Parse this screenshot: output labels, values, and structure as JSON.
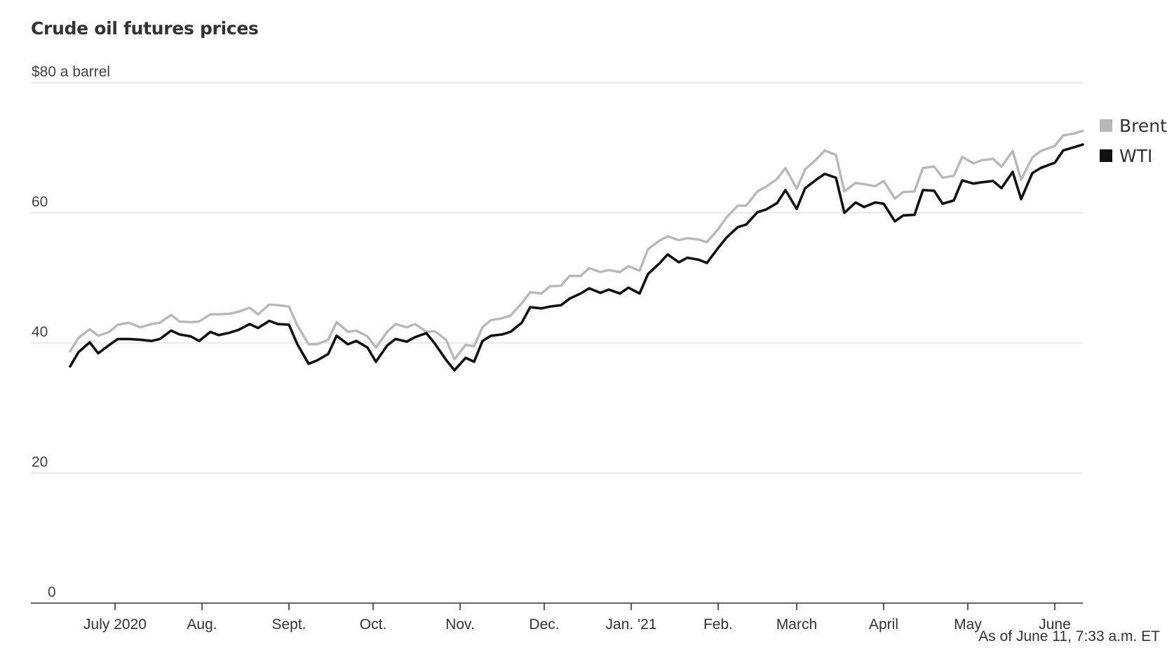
{
  "chart_data": {
    "type": "line",
    "title": "Crude oil futures prices",
    "y_unit_label": "$80 a barrel",
    "ylim": [
      0,
      80
    ],
    "y_ticks": [
      0,
      20,
      40,
      60,
      80
    ],
    "y_tick_labels": [
      "0",
      "20",
      "40",
      "60",
      "$80 a barrel"
    ],
    "xlim": [
      "2020-06-01",
      "2021-06-11"
    ],
    "x_ticks": [
      {
        "date": "2020-07-01",
        "label": "July 2020"
      },
      {
        "date": "2020-08-01",
        "label": "Aug."
      },
      {
        "date": "2020-09-01",
        "label": "Sept."
      },
      {
        "date": "2020-10-01",
        "label": "Oct."
      },
      {
        "date": "2020-11-01",
        "label": "Nov."
      },
      {
        "date": "2020-12-01",
        "label": "Dec."
      },
      {
        "date": "2021-01-01",
        "label": "Jan. '21"
      },
      {
        "date": "2021-02-01",
        "label": "Feb."
      },
      {
        "date": "2021-03-01",
        "label": "March"
      },
      {
        "date": "2021-04-01",
        "label": "April"
      },
      {
        "date": "2021-05-01",
        "label": "May"
      },
      {
        "date": "2021-06-01",
        "label": "June"
      }
    ],
    "grid": true,
    "legend_position": "right",
    "series": [
      {
        "name": "Brent",
        "color": "#b8b8b8",
        "points": [
          [
            "2020-06-15",
            38.7
          ],
          [
            "2020-06-18",
            40.8
          ],
          [
            "2020-06-22",
            42.1
          ],
          [
            "2020-06-25",
            41.1
          ],
          [
            "2020-06-29",
            41.7
          ],
          [
            "2020-07-02",
            42.8
          ],
          [
            "2020-07-06",
            43.1
          ],
          [
            "2020-07-10",
            42.4
          ],
          [
            "2020-07-14",
            42.9
          ],
          [
            "2020-07-17",
            43.1
          ],
          [
            "2020-07-21",
            44.3
          ],
          [
            "2020-07-24",
            43.3
          ],
          [
            "2020-07-28",
            43.2
          ],
          [
            "2020-07-31",
            43.3
          ],
          [
            "2020-08-04",
            44.4
          ],
          [
            "2020-08-07",
            44.4
          ],
          [
            "2020-08-11",
            44.5
          ],
          [
            "2020-08-14",
            44.8
          ],
          [
            "2020-08-18",
            45.4
          ],
          [
            "2020-08-21",
            44.4
          ],
          [
            "2020-08-25",
            45.9
          ],
          [
            "2020-08-28",
            45.8
          ],
          [
            "2020-09-01",
            45.6
          ],
          [
            "2020-09-04",
            42.7
          ],
          [
            "2020-09-08",
            39.8
          ],
          [
            "2020-09-11",
            39.8
          ],
          [
            "2020-09-15",
            40.5
          ],
          [
            "2020-09-18",
            43.2
          ],
          [
            "2020-09-22",
            41.7
          ],
          [
            "2020-09-25",
            41.9
          ],
          [
            "2020-09-29",
            41.0
          ],
          [
            "2020-10-02",
            39.3
          ],
          [
            "2020-10-06",
            41.7
          ],
          [
            "2020-10-09",
            42.9
          ],
          [
            "2020-10-13",
            42.4
          ],
          [
            "2020-10-16",
            42.9
          ],
          [
            "2020-10-20",
            41.7
          ],
          [
            "2020-10-23",
            41.8
          ],
          [
            "2020-10-27",
            40.5
          ],
          [
            "2020-10-30",
            37.5
          ],
          [
            "2020-11-03",
            39.7
          ],
          [
            "2020-11-06",
            39.5
          ],
          [
            "2020-11-09",
            42.4
          ],
          [
            "2020-11-12",
            43.5
          ],
          [
            "2020-11-16",
            43.8
          ],
          [
            "2020-11-19",
            44.2
          ],
          [
            "2020-11-23",
            46.1
          ],
          [
            "2020-11-26",
            47.8
          ],
          [
            "2020-11-30",
            47.6
          ],
          [
            "2020-12-03",
            48.7
          ],
          [
            "2020-12-07",
            48.8
          ],
          [
            "2020-12-10",
            50.3
          ],
          [
            "2020-12-14",
            50.3
          ],
          [
            "2020-12-17",
            51.5
          ],
          [
            "2020-12-21",
            50.9
          ],
          [
            "2020-12-24",
            51.2
          ],
          [
            "2020-12-28",
            50.9
          ],
          [
            "2020-12-31",
            51.8
          ],
          [
            "2021-01-04",
            51.1
          ],
          [
            "2021-01-07",
            54.4
          ],
          [
            "2021-01-11",
            55.7
          ],
          [
            "2021-01-14",
            56.4
          ],
          [
            "2021-01-18",
            55.8
          ],
          [
            "2021-01-21",
            56.1
          ],
          [
            "2021-01-25",
            55.9
          ],
          [
            "2021-01-28",
            55.5
          ],
          [
            "2021-02-01",
            57.5
          ],
          [
            "2021-02-04",
            59.3
          ],
          [
            "2021-02-08",
            61.1
          ],
          [
            "2021-02-11",
            61.1
          ],
          [
            "2021-02-15",
            63.3
          ],
          [
            "2021-02-18",
            64.0
          ],
          [
            "2021-02-22",
            65.2
          ],
          [
            "2021-02-25",
            66.9
          ],
          [
            "2021-03-01",
            63.7
          ],
          [
            "2021-03-04",
            66.7
          ],
          [
            "2021-03-08",
            68.2
          ],
          [
            "2021-03-11",
            69.6
          ],
          [
            "2021-03-15",
            68.9
          ],
          [
            "2021-03-18",
            63.3
          ],
          [
            "2021-03-22",
            64.6
          ],
          [
            "2021-03-25",
            64.4
          ],
          [
            "2021-03-29",
            64.1
          ],
          [
            "2021-04-01",
            64.9
          ],
          [
            "2021-04-05",
            62.2
          ],
          [
            "2021-04-08",
            63.2
          ],
          [
            "2021-04-12",
            63.3
          ],
          [
            "2021-04-15",
            66.9
          ],
          [
            "2021-04-19",
            67.1
          ],
          [
            "2021-04-22",
            65.4
          ],
          [
            "2021-04-26",
            65.7
          ],
          [
            "2021-04-29",
            68.6
          ],
          [
            "2021-05-03",
            67.6
          ],
          [
            "2021-05-06",
            68.1
          ],
          [
            "2021-05-10",
            68.3
          ],
          [
            "2021-05-13",
            67.1
          ],
          [
            "2021-05-17",
            69.5
          ],
          [
            "2021-05-20",
            65.1
          ],
          [
            "2021-05-24",
            68.5
          ],
          [
            "2021-05-27",
            69.5
          ],
          [
            "2021-06-01",
            70.3
          ],
          [
            "2021-06-04",
            71.9
          ],
          [
            "2021-06-08",
            72.2
          ],
          [
            "2021-06-11",
            72.6
          ]
        ]
      },
      {
        "name": "WTI",
        "color": "#111111",
        "points": [
          [
            "2020-06-15",
            36.4
          ],
          [
            "2020-06-18",
            38.6
          ],
          [
            "2020-06-22",
            40.1
          ],
          [
            "2020-06-25",
            38.4
          ],
          [
            "2020-06-29",
            39.7
          ],
          [
            "2020-07-02",
            40.6
          ],
          [
            "2020-07-06",
            40.6
          ],
          [
            "2020-07-10",
            40.5
          ],
          [
            "2020-07-14",
            40.3
          ],
          [
            "2020-07-17",
            40.6
          ],
          [
            "2020-07-21",
            41.9
          ],
          [
            "2020-07-24",
            41.3
          ],
          [
            "2020-07-28",
            41.0
          ],
          [
            "2020-07-31",
            40.3
          ],
          [
            "2020-08-04",
            41.7
          ],
          [
            "2020-08-07",
            41.2
          ],
          [
            "2020-08-11",
            41.6
          ],
          [
            "2020-08-14",
            42.0
          ],
          [
            "2020-08-18",
            42.9
          ],
          [
            "2020-08-21",
            42.3
          ],
          [
            "2020-08-25",
            43.4
          ],
          [
            "2020-08-28",
            42.9
          ],
          [
            "2020-09-01",
            42.8
          ],
          [
            "2020-09-04",
            39.8
          ],
          [
            "2020-09-08",
            36.8
          ],
          [
            "2020-09-11",
            37.3
          ],
          [
            "2020-09-15",
            38.3
          ],
          [
            "2020-09-18",
            41.1
          ],
          [
            "2020-09-22",
            39.8
          ],
          [
            "2020-09-25",
            40.3
          ],
          [
            "2020-09-29",
            39.3
          ],
          [
            "2020-10-02",
            37.1
          ],
          [
            "2020-10-06",
            39.6
          ],
          [
            "2020-10-09",
            40.6
          ],
          [
            "2020-10-13",
            40.2
          ],
          [
            "2020-10-16",
            40.9
          ],
          [
            "2020-10-20",
            41.5
          ],
          [
            "2020-10-23",
            39.9
          ],
          [
            "2020-10-27",
            37.4
          ],
          [
            "2020-10-30",
            35.8
          ],
          [
            "2020-11-03",
            37.7
          ],
          [
            "2020-11-06",
            37.1
          ],
          [
            "2020-11-09",
            40.3
          ],
          [
            "2020-11-12",
            41.1
          ],
          [
            "2020-11-16",
            41.3
          ],
          [
            "2020-11-19",
            41.7
          ],
          [
            "2020-11-23",
            43.1
          ],
          [
            "2020-11-26",
            45.5
          ],
          [
            "2020-11-30",
            45.3
          ],
          [
            "2020-12-03",
            45.6
          ],
          [
            "2020-12-07",
            45.8
          ],
          [
            "2020-12-10",
            46.8
          ],
          [
            "2020-12-14",
            47.6
          ],
          [
            "2020-12-17",
            48.4
          ],
          [
            "2020-12-21",
            47.7
          ],
          [
            "2020-12-24",
            48.2
          ],
          [
            "2020-12-28",
            47.6
          ],
          [
            "2020-12-31",
            48.5
          ],
          [
            "2021-01-04",
            47.6
          ],
          [
            "2021-01-07",
            50.6
          ],
          [
            "2021-01-11",
            52.2
          ],
          [
            "2021-01-14",
            53.6
          ],
          [
            "2021-01-18",
            52.4
          ],
          [
            "2021-01-21",
            53.1
          ],
          [
            "2021-01-25",
            52.8
          ],
          [
            "2021-01-28",
            52.3
          ],
          [
            "2021-02-01",
            54.6
          ],
          [
            "2021-02-04",
            56.2
          ],
          [
            "2021-02-08",
            57.8
          ],
          [
            "2021-02-11",
            58.2
          ],
          [
            "2021-02-15",
            60.1
          ],
          [
            "2021-02-18",
            60.5
          ],
          [
            "2021-02-22",
            61.5
          ],
          [
            "2021-02-25",
            63.5
          ],
          [
            "2021-03-01",
            60.6
          ],
          [
            "2021-03-04",
            63.8
          ],
          [
            "2021-03-08",
            65.1
          ],
          [
            "2021-03-11",
            66.0
          ],
          [
            "2021-03-15",
            65.4
          ],
          [
            "2021-03-18",
            60.0
          ],
          [
            "2021-03-22",
            61.6
          ],
          [
            "2021-03-25",
            60.9
          ],
          [
            "2021-03-29",
            61.6
          ],
          [
            "2021-04-01",
            61.4
          ],
          [
            "2021-04-05",
            58.7
          ],
          [
            "2021-04-08",
            59.6
          ],
          [
            "2021-04-12",
            59.7
          ],
          [
            "2021-04-15",
            63.5
          ],
          [
            "2021-04-19",
            63.4
          ],
          [
            "2021-04-22",
            61.4
          ],
          [
            "2021-04-26",
            61.9
          ],
          [
            "2021-04-29",
            65.0
          ],
          [
            "2021-05-03",
            64.5
          ],
          [
            "2021-05-06",
            64.7
          ],
          [
            "2021-05-10",
            64.9
          ],
          [
            "2021-05-13",
            63.8
          ],
          [
            "2021-05-17",
            66.3
          ],
          [
            "2021-05-20",
            62.1
          ],
          [
            "2021-05-24",
            66.1
          ],
          [
            "2021-05-27",
            66.9
          ],
          [
            "2021-06-01",
            67.7
          ],
          [
            "2021-06-04",
            69.6
          ],
          [
            "2021-06-08",
            70.1
          ],
          [
            "2021-06-11",
            70.5
          ]
        ]
      }
    ],
    "note": "As of June 11, 7:33 a.m. ET"
  }
}
